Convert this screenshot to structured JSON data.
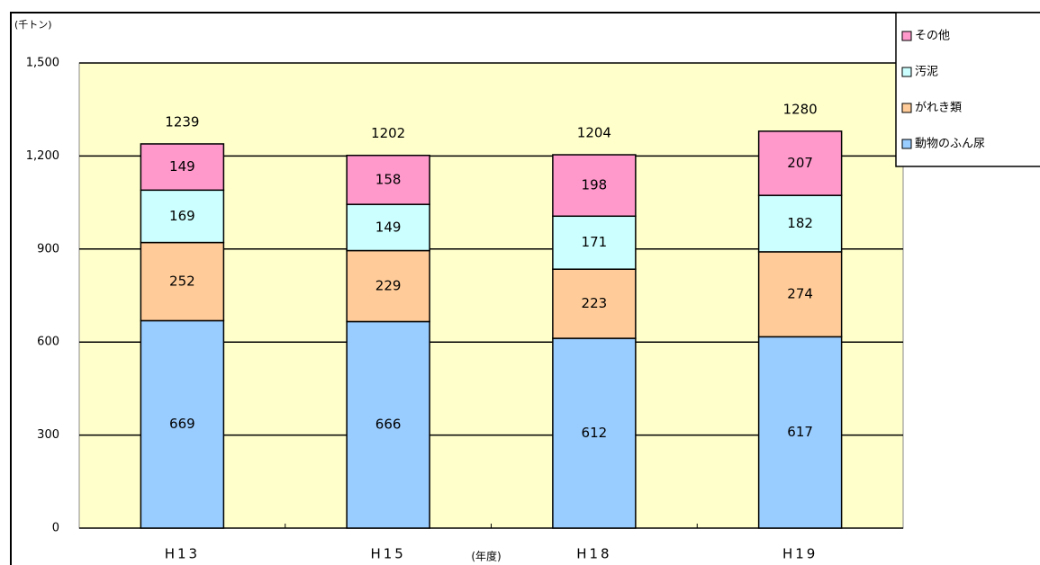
{
  "chart_data": {
    "type": "stacked_bar",
    "y_label": "(千トン)",
    "x_label": "(年度)",
    "categories": [
      "H13",
      "H15",
      "H18",
      "H19"
    ],
    "series": [
      {
        "name": "動物のふん尿",
        "color": "#99ccff",
        "values": [
          669,
          666,
          612,
          617
        ]
      },
      {
        "name": "がれき類",
        "color": "#ffcc99",
        "values": [
          252,
          229,
          223,
          274
        ]
      },
      {
        "name": "汚泥",
        "color": "#ccffff",
        "values": [
          169,
          149,
          171,
          182
        ]
      },
      {
        "name": "その他",
        "color": "#ff99cc",
        "values": [
          149,
          158,
          198,
          207
        ]
      }
    ],
    "totals": [
      1239,
      1202,
      1204,
      1280
    ],
    "ylim": [
      0,
      1500
    ],
    "yticks": [
      0,
      300,
      600,
      900,
      {
        "value": 1200,
        "label": "1,200"
      },
      {
        "value": 1500,
        "label": "1,500"
      }
    ],
    "grid": true,
    "legend": "upper right",
    "plot_background": "#ffffcc"
  }
}
